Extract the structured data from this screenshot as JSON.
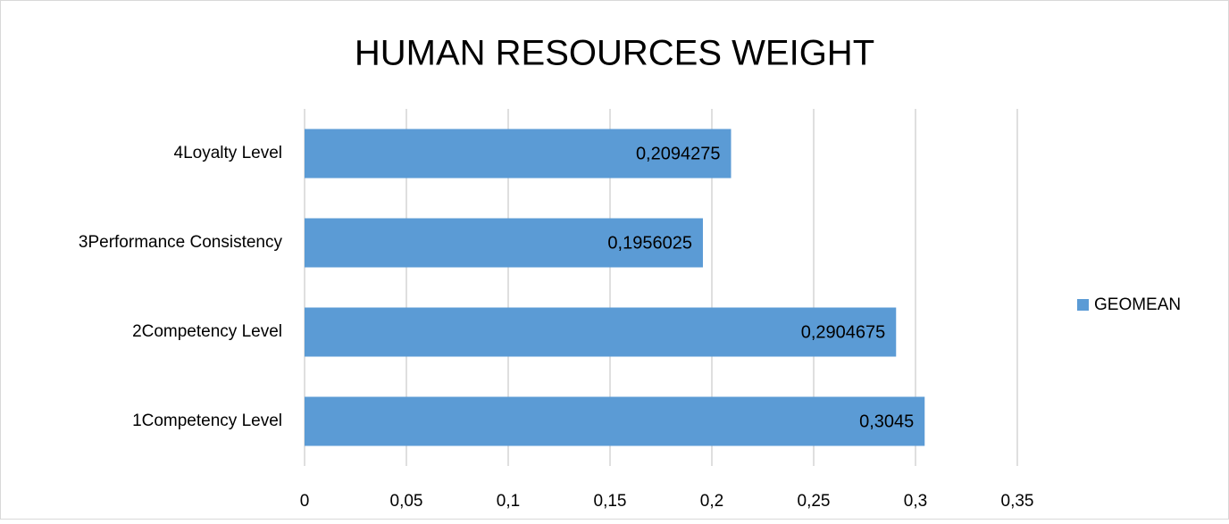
{
  "chart_data": {
    "type": "bar",
    "orientation": "horizontal",
    "title": "HUMAN RESOURCES WEIGHT",
    "categories": [
      "1Competency Level",
      "2Competency Level",
      "3Performance Consistency",
      "4Loyalty Level"
    ],
    "series": [
      {
        "name": "GEOMEAN",
        "color": "#5b9bd5",
        "values": [
          0.3045,
          0.2904675,
          0.1956025,
          0.2094275
        ],
        "value_labels": [
          "0,3045",
          "0,2904675",
          "0,1956025",
          "0,2094275"
        ]
      }
    ],
    "xlim": [
      0,
      0.35
    ],
    "xticks": [
      0,
      {
        "value": 0.05,
        "label": "0,05"
      },
      {
        "value": 0.1,
        "label": "0,1"
      },
      {
        "value": 0.15,
        "label": "0,15"
      },
      {
        "value": 0.2,
        "label": "0,2"
      },
      {
        "value": 0.25,
        "label": "0,25"
      },
      {
        "value": 0.3,
        "label": "0,3"
      },
      {
        "value": 0.35,
        "label": "0,35"
      }
    ],
    "grid": true,
    "legend": "right"
  }
}
